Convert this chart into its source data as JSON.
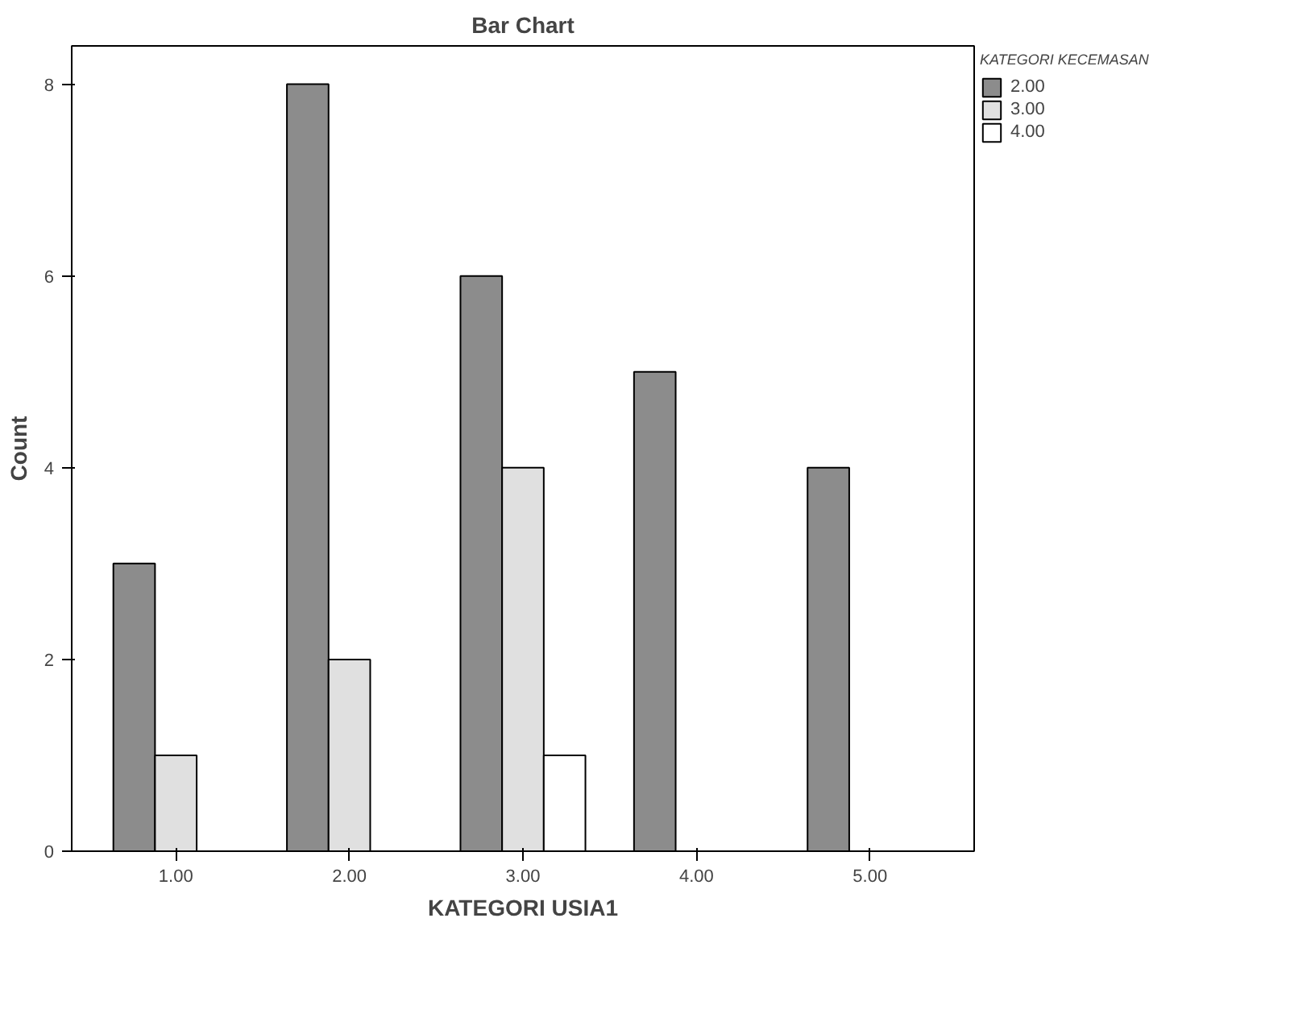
{
  "chart_data": {
    "type": "bar",
    "title": "Bar Chart",
    "xlabel": "KATEGORI USIA1",
    "ylabel": "Count",
    "legend_title": "KATEGORI KECEMASAN",
    "categories": [
      "1.00",
      "2.00",
      "3.00",
      "4.00",
      "5.00"
    ],
    "series": [
      {
        "name": "2.00",
        "color": "#8c8c8c",
        "values": [
          3,
          8,
          6,
          5,
          4
        ]
      },
      {
        "name": "3.00",
        "color": "#e0e0e0",
        "values": [
          1,
          2,
          4,
          null,
          null
        ]
      },
      {
        "name": "4.00",
        "color": "#ffffff",
        "values": [
          null,
          null,
          1,
          null,
          null
        ]
      }
    ],
    "ylim": [
      0,
      8.4
    ],
    "yticks": [
      0,
      2,
      4,
      6,
      8
    ],
    "legend": "right",
    "grid": false
  }
}
